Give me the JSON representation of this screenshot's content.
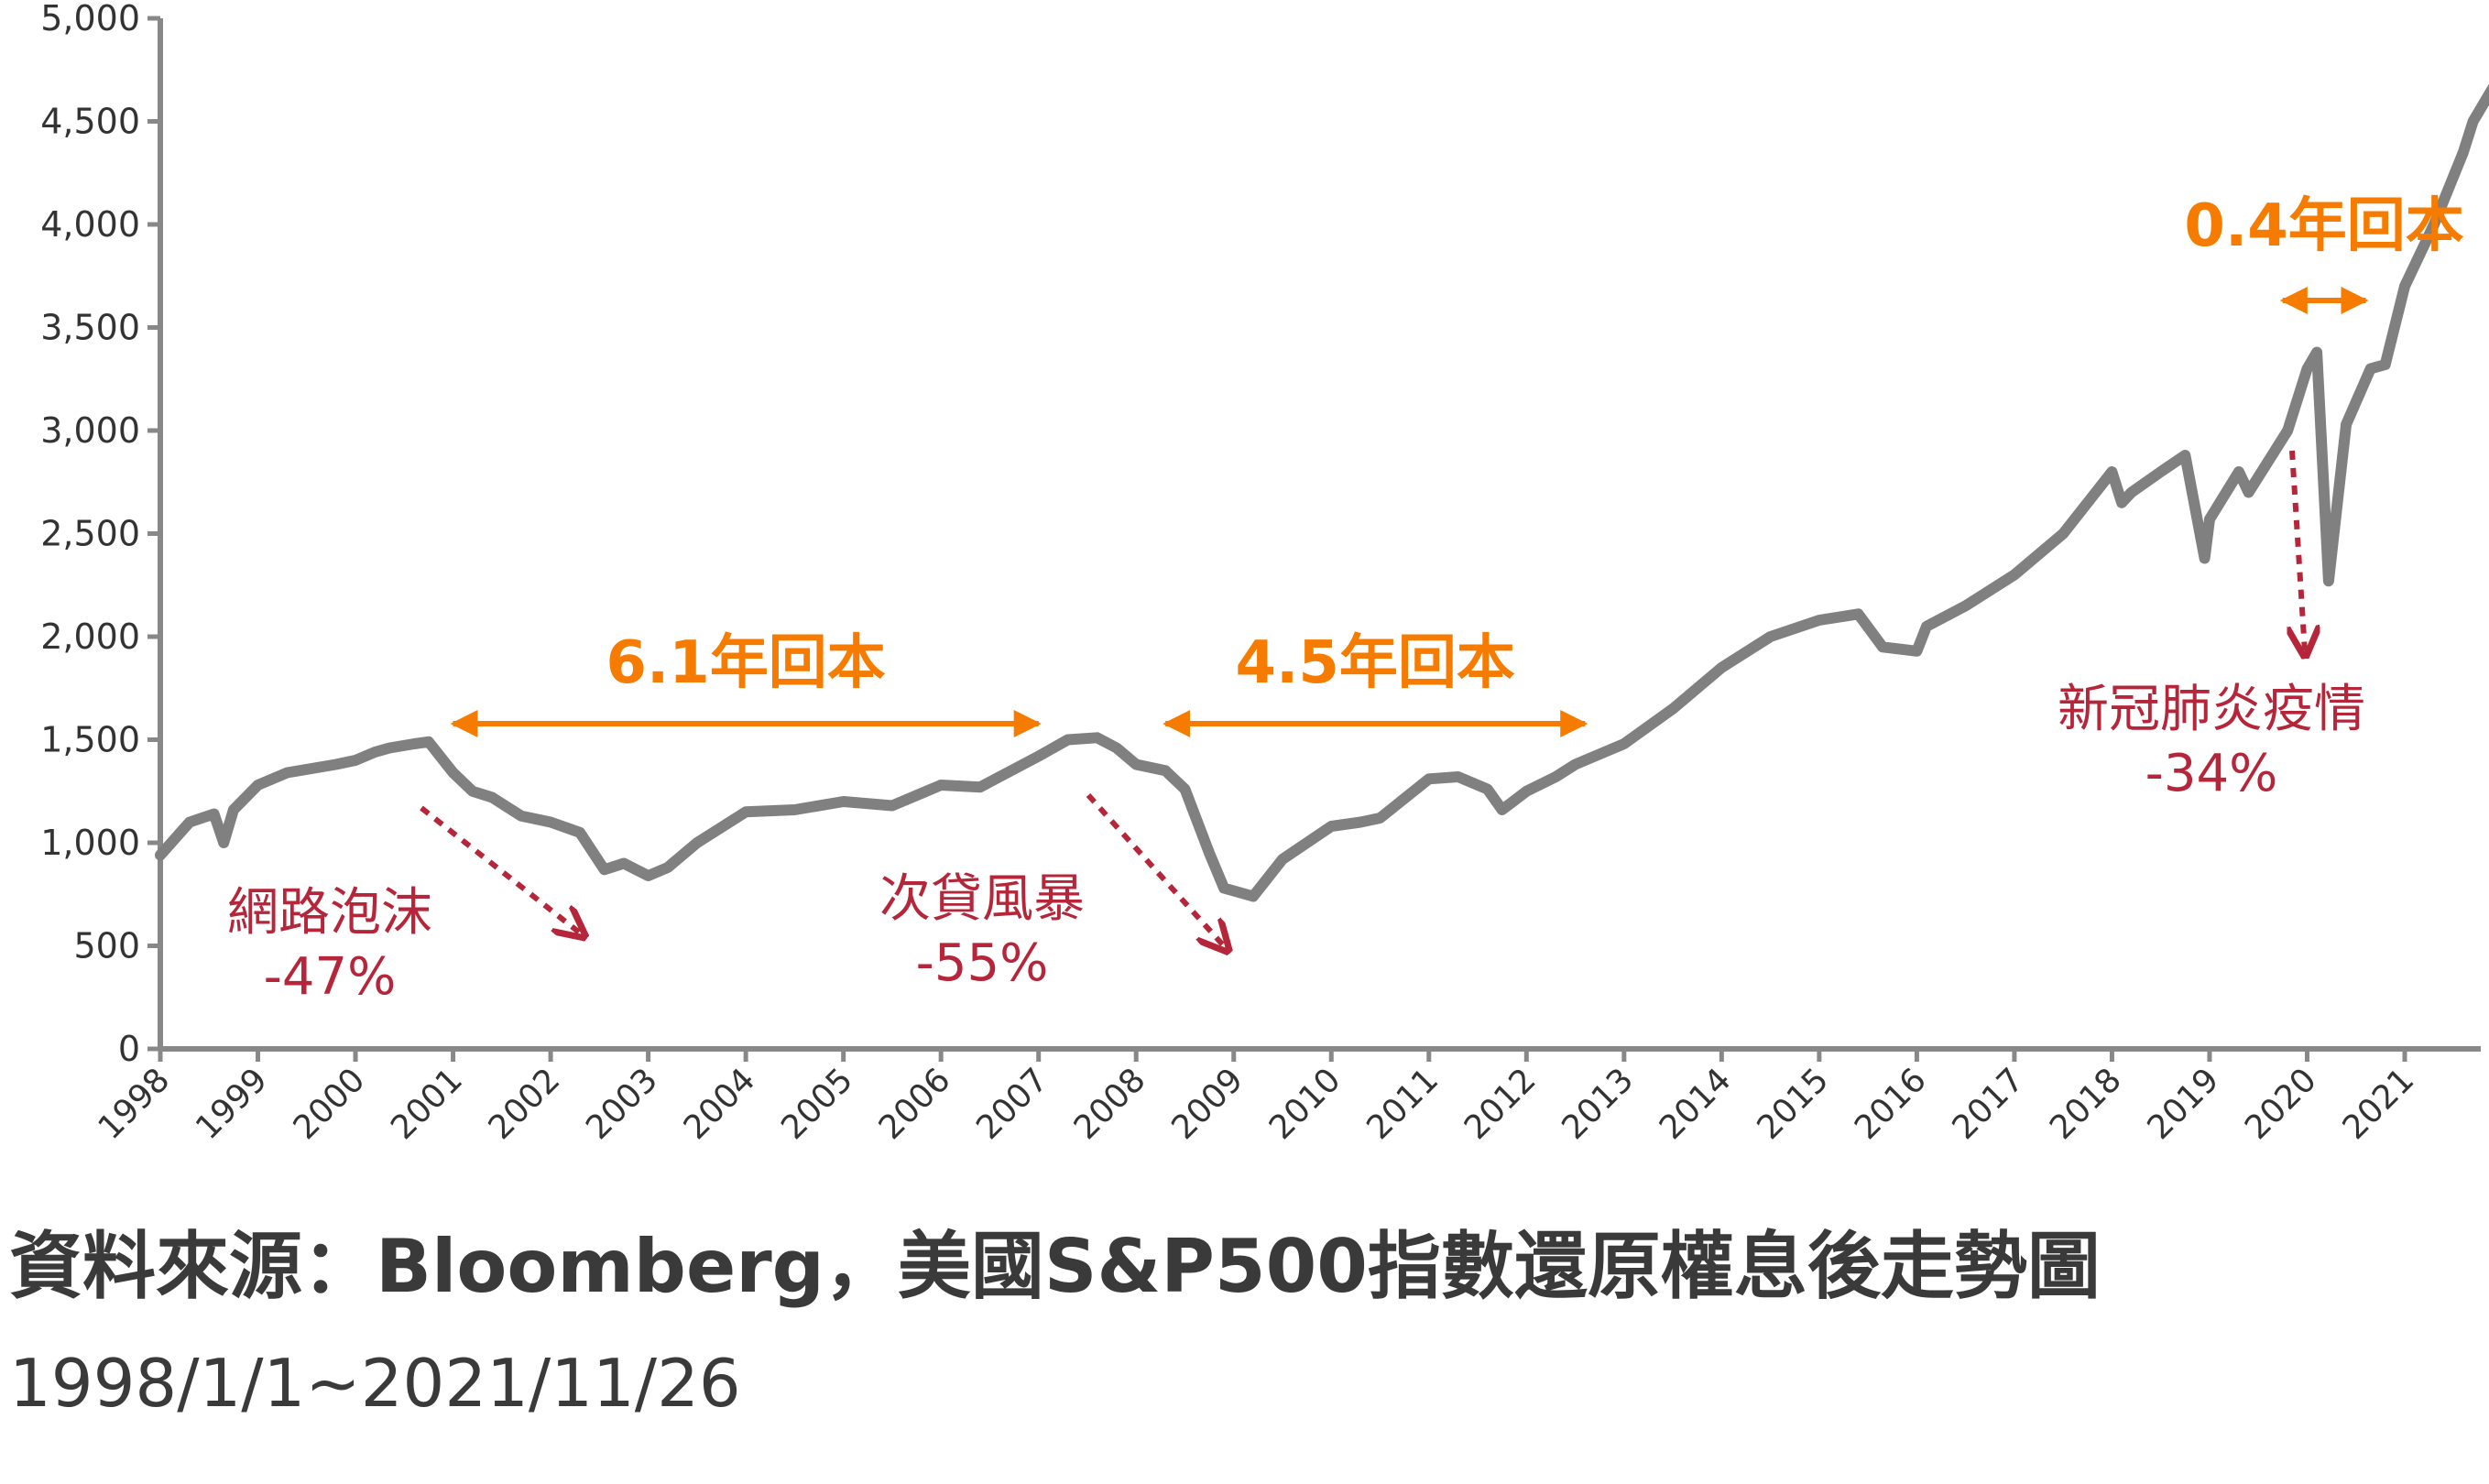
{
  "chart_data": {
    "type": "line",
    "title": "",
    "xlabel": "",
    "ylabel": "",
    "xlim": [
      1998.0,
      2021.9
    ],
    "ylim": [
      0,
      5000
    ],
    "y_ticks": [
      "0",
      "500",
      "1,000",
      "1,500",
      "2,000",
      "2,500",
      "3,000",
      "3,500",
      "4,000",
      "4,500",
      "5,000"
    ],
    "y_tick_values": [
      0,
      500,
      1000,
      1500,
      2000,
      2500,
      3000,
      3500,
      4000,
      4500,
      5000
    ],
    "x_ticks": [
      "1998",
      "1999",
      "2000",
      "2001",
      "2002",
      "2003",
      "2004",
      "2005",
      "2006",
      "2007",
      "2008",
      "2009",
      "2010",
      "2011",
      "2012",
      "2013",
      "2014",
      "2015",
      "2016",
      "2017",
      "2018",
      "2019",
      "2020",
      "2021"
    ],
    "x_tick_values": [
      1998,
      1999,
      2000,
      2001,
      2002,
      2003,
      2004,
      2005,
      2006,
      2007,
      2008,
      2009,
      2010,
      2011,
      2012,
      2013,
      2014,
      2015,
      2016,
      2017,
      2018,
      2019,
      2020,
      2021
    ],
    "grid": false,
    "series_color": "#808080",
    "series": [
      {
        "x": [
          1998.0,
          1998.3,
          1998.55,
          1998.65,
          1998.75,
          1999.0,
          1999.3,
          1999.55,
          1999.8,
          2000.0,
          2000.2,
          2000.35,
          2000.6,
          2000.75,
          2001.0,
          2001.2,
          2001.4,
          2001.7,
          2002.0,
          2002.3,
          2002.55,
          2002.75,
          2003.0,
          2003.2,
          2003.5,
          2004.0,
          2004.5,
          2005.0,
          2005.5,
          2006.0,
          2006.4,
          2006.6,
          2007.0,
          2007.3,
          2007.6,
          2007.8,
          2008.0,
          2008.3,
          2008.5,
          2008.75,
          2008.9,
          2009.2,
          2009.5,
          2010.0,
          2010.3,
          2010.5,
          2011.0,
          2011.3,
          2011.6,
          2011.75,
          2012.0,
          2012.3,
          2012.5,
          2013.0,
          2013.5,
          2014.0,
          2014.5,
          2015.0,
          2015.4,
          2015.65,
          2016.0,
          2016.1,
          2016.5,
          2017.0,
          2017.5,
          2018.0,
          2018.1,
          2018.2,
          2018.5,
          2018.75,
          2018.95,
          2019.0,
          2019.3,
          2019.4,
          2019.8,
          2020.0,
          2020.1,
          2020.22,
          2020.4,
          2020.65,
          2020.8,
          2021.0,
          2021.3,
          2021.6,
          2021.7,
          2021.9
        ],
        "y": [
          940,
          1100,
          1140,
          1000,
          1160,
          1280,
          1340,
          1360,
          1380,
          1400,
          1440,
          1460,
          1480,
          1490,
          1340,
          1250,
          1220,
          1130,
          1100,
          1050,
          870,
          900,
          840,
          880,
          1000,
          1150,
          1160,
          1200,
          1180,
          1280,
          1270,
          1320,
          1420,
          1500,
          1510,
          1460,
          1380,
          1350,
          1260,
          950,
          780,
          740,
          920,
          1080,
          1100,
          1120,
          1310,
          1320,
          1260,
          1160,
          1250,
          1320,
          1380,
          1480,
          1650,
          1850,
          2000,
          2080,
          2110,
          1950,
          1930,
          2050,
          2150,
          2300,
          2500,
          2800,
          2650,
          2700,
          2800,
          2880,
          2380,
          2570,
          2800,
          2700,
          3000,
          3300,
          3380,
          2270,
          3030,
          3300,
          3320,
          3700,
          4000,
          4350,
          4500,
          4660
        ]
      }
    ],
    "annotations": {
      "dotcom_name": "網路泡沫",
      "dotcom_drop": "-47%",
      "subprime_name": "次貸風暴",
      "subprime_drop": "-55%",
      "covid_name": "新冠肺炎疫情",
      "covid_drop": "-34%",
      "recovery_dotcom": "6.1年回本",
      "recovery_subprime": "4.5年回本",
      "recovery_covid": "0.4年回本",
      "recovery_dotcom_x": [
        2001.0,
        2007.0
      ],
      "recovery_subprime_x": [
        2008.3,
        2012.6
      ],
      "recovery_covid_x": [
        2019.75,
        2020.6
      ]
    },
    "colors": {
      "orange": "#f57c00",
      "red": "#b5263a",
      "axis": "#888888"
    }
  },
  "source": {
    "title": "資料來源：Bloomberg，美國S&P500指數還原權息後走勢圖",
    "range": "1998/1/1~2021/11/26"
  }
}
